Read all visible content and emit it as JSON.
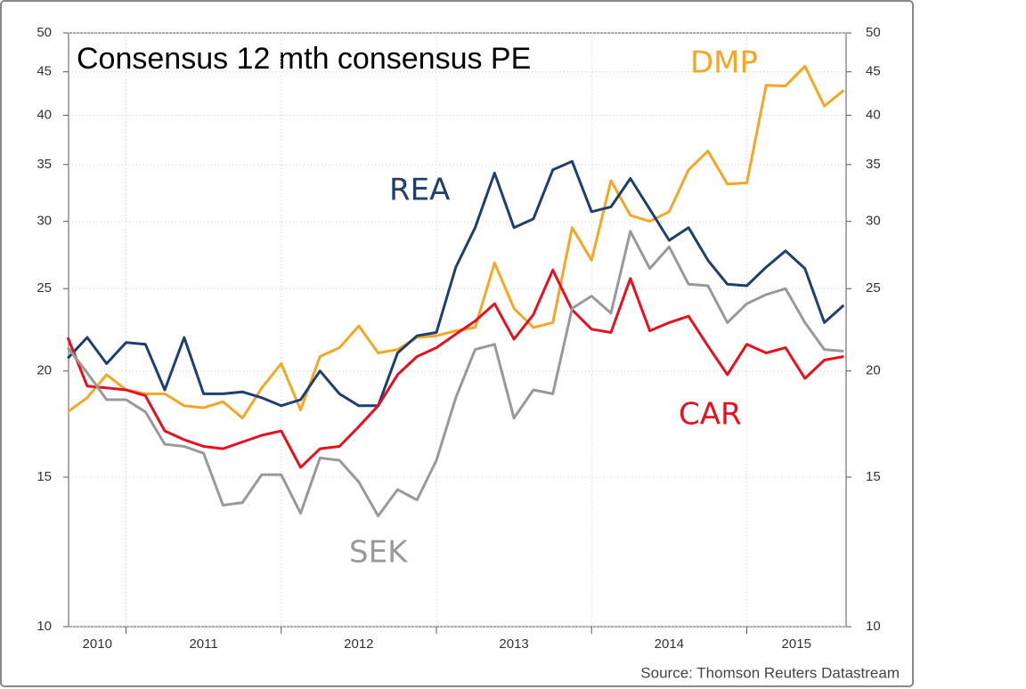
{
  "chart_data": {
    "type": "line",
    "title": "Consensus 12 mth consensus PE",
    "source": "Source: Thomson Reuters Datastream",
    "x": [
      2010.625,
      2010.75,
      2010.875,
      2011.0,
      2011.125,
      2011.25,
      2011.375,
      2011.5,
      2011.625,
      2011.75,
      2011.875,
      2012.0,
      2012.125,
      2012.25,
      2012.375,
      2012.5,
      2012.625,
      2012.75,
      2012.875,
      2013.0,
      2013.125,
      2013.25,
      2013.375,
      2013.5,
      2013.625,
      2013.75,
      2013.875,
      2014.0,
      2014.125,
      2014.25,
      2014.375,
      2014.5,
      2014.625,
      2014.75,
      2014.875,
      2015.0,
      2015.125,
      2015.25,
      2015.375,
      2015.5,
      2015.625
    ],
    "xlim": [
      2010.63,
      2015.64
    ],
    "xticks": [
      2010,
      2011,
      2012,
      2013,
      2014,
      2015
    ],
    "ylim": [
      10,
      50
    ],
    "yticks": [
      10,
      15,
      20,
      25,
      30,
      35,
      40,
      45,
      50
    ],
    "y2lim": [
      10,
      50
    ],
    "y2ticks": [
      10,
      15,
      20,
      25,
      30,
      35,
      40,
      45,
      50
    ],
    "log_scale": true,
    "grid": true,
    "series": [
      {
        "name": "DMP",
        "color": "#f5a623",
        "values": [
          17.9,
          18.6,
          19.8,
          19.0,
          18.8,
          18.8,
          18.2,
          18.1,
          18.4,
          17.6,
          19.1,
          20.4,
          18.0,
          20.8,
          21.3,
          22.6,
          21.0,
          21.2,
          21.9,
          22.0,
          22.3,
          22.5,
          26.8,
          23.7,
          22.5,
          22.8,
          29.5,
          27.0,
          33.5,
          30.5,
          30.0,
          30.8,
          34.5,
          36.3,
          33.2,
          33.3,
          43.4,
          43.3,
          45.7,
          41.0,
          42.8
        ]
      },
      {
        "name": "REA",
        "color": "#1f3f6e",
        "values": [
          20.7,
          21.9,
          20.4,
          21.6,
          21.5,
          19.0,
          21.9,
          18.8,
          18.8,
          18.9,
          18.6,
          18.2,
          18.5,
          20.0,
          18.8,
          18.2,
          18.2,
          21.0,
          22.0,
          22.2,
          26.5,
          29.5,
          34.2,
          29.5,
          30.2,
          34.5,
          35.3,
          30.8,
          31.2,
          33.7,
          31.0,
          28.5,
          29.5,
          27.0,
          25.3,
          25.2,
          26.5,
          27.7,
          26.4,
          22.8,
          23.9
        ]
      },
      {
        "name": "CAR",
        "color": "#e8101e",
        "values": [
          21.9,
          19.2,
          19.1,
          19.0,
          18.7,
          17.0,
          16.6,
          16.3,
          16.2,
          16.5,
          16.8,
          17.0,
          15.4,
          16.2,
          16.3,
          17.2,
          18.2,
          19.8,
          20.8,
          21.3,
          22.1,
          22.9,
          24.0,
          21.8,
          23.3,
          26.3,
          23.6,
          22.4,
          22.2,
          25.7,
          22.3,
          22.8,
          23.2,
          21.4,
          19.8,
          21.5,
          21.0,
          21.3,
          19.6,
          20.6,
          20.8
        ]
      },
      {
        "name": "SEK",
        "color": "#999999",
        "values": [
          21.3,
          19.9,
          18.5,
          18.5,
          17.9,
          16.4,
          16.3,
          16.0,
          13.9,
          14.0,
          15.1,
          15.1,
          13.6,
          15.8,
          15.7,
          14.8,
          13.5,
          14.5,
          14.1,
          15.7,
          18.6,
          21.2,
          21.5,
          17.6,
          19.0,
          18.8,
          23.7,
          24.5,
          23.4,
          29.2,
          26.4,
          28.0,
          25.3,
          25.2,
          22.8,
          24.0,
          24.6,
          25.0,
          22.8,
          21.2,
          21.1
        ]
      }
    ]
  }
}
